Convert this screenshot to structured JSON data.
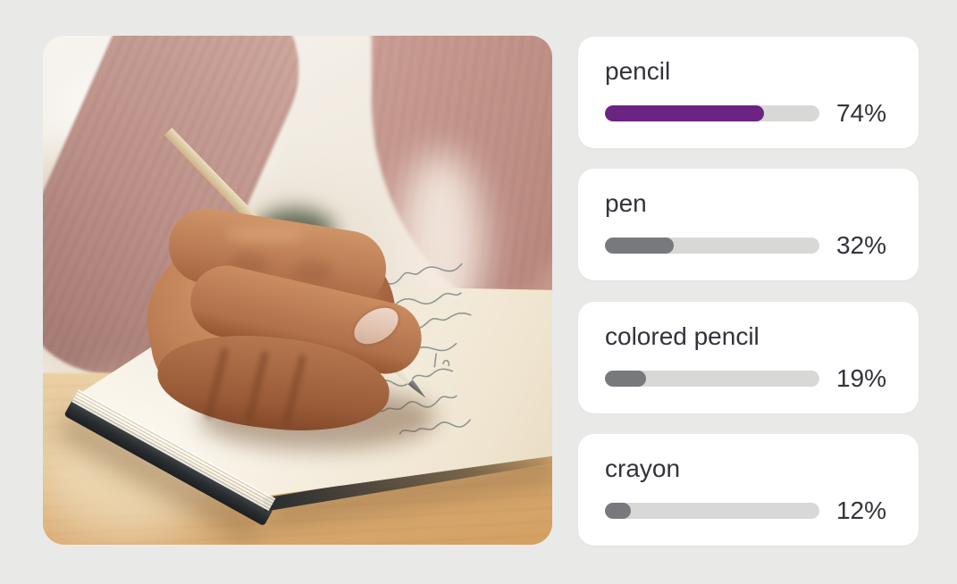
{
  "page": {
    "background_color": "#e9e9e8"
  },
  "photo": {
    "description": "Close-up of a person in a dusty-pink ribbed sweater writing with a wooden pencil in an open notebook on a wooden desk"
  },
  "results": {
    "track_color": "#d8d8d7",
    "items": [
      {
        "label": "pencil",
        "value": 74,
        "percent": "74%",
        "bar_color": "#6c2483"
      },
      {
        "label": "pen",
        "value": 32,
        "percent": "32%",
        "bar_color": "#77797d"
      },
      {
        "label": "colored pencil",
        "value": 19,
        "percent": "19%",
        "bar_color": "#77797d"
      },
      {
        "label": "crayon",
        "value": 12,
        "percent": "12%",
        "bar_color": "#77797d"
      }
    ]
  }
}
